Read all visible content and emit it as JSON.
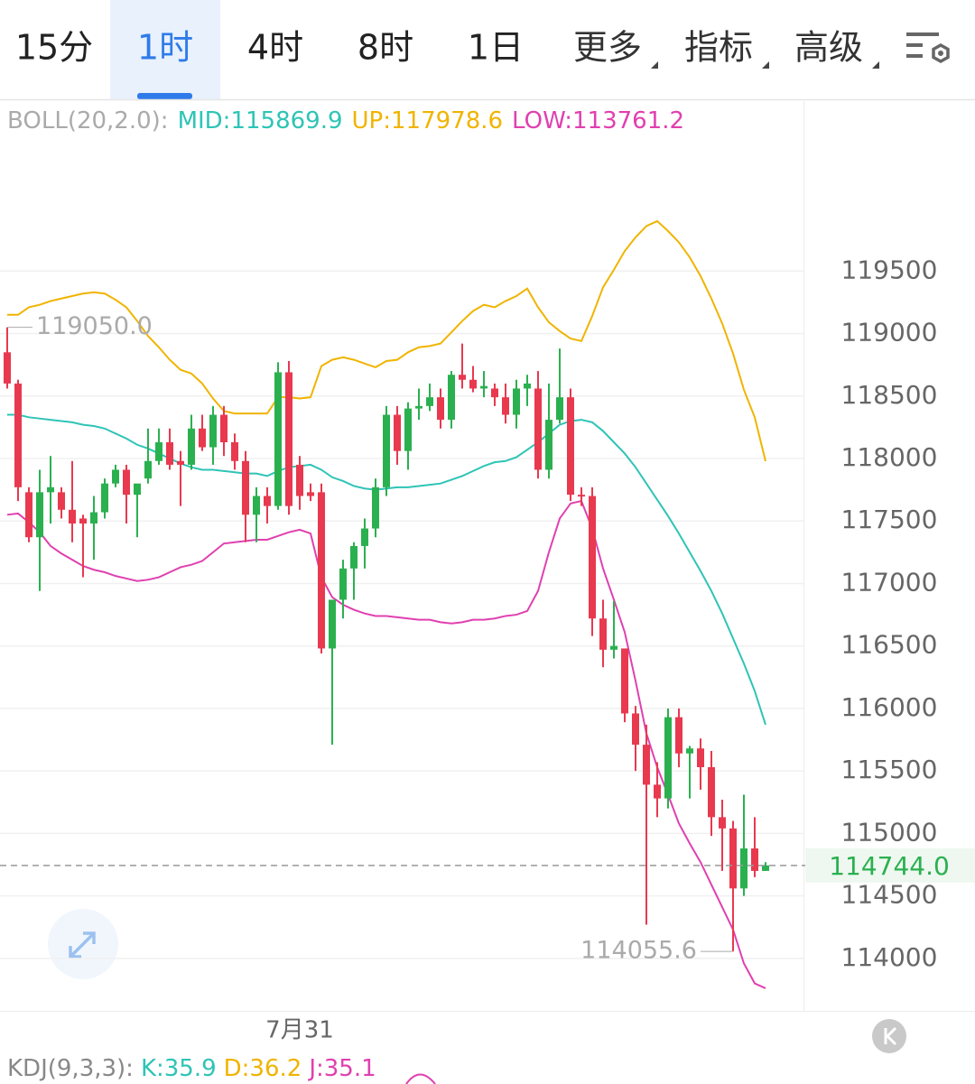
{
  "toolbar": {
    "tabs": [
      "15分",
      "1时",
      "4时",
      "8时",
      "1日"
    ],
    "active": 1,
    "menus": [
      "更多",
      "指标",
      "高级"
    ]
  },
  "chart_data": {
    "type": "candlestick",
    "indicator_label": "BOLL(20,2.0):",
    "indicator_texts": [
      {
        "text": "MID:115869.9",
        "color": "#2ec4b6"
      },
      {
        "text": "UP:117978.6",
        "color": "#f0b400"
      },
      {
        "text": "LOW:113761.2",
        "color": "#e040b0"
      }
    ],
    "up_color": "#2bb04f",
    "down_color": "#e8394f",
    "ylim": [
      113580,
      120860
    ],
    "yticks": [
      114000,
      114500,
      115000,
      115500,
      116000,
      116500,
      117000,
      117500,
      118000,
      118500,
      119000,
      119500
    ],
    "grid": true,
    "categories": [
      null,
      null,
      null,
      null,
      null,
      null,
      null,
      null,
      null,
      null,
      null,
      null,
      null,
      null,
      null,
      null,
      null,
      null,
      null,
      null,
      null,
      null,
      null,
      null,
      null,
      null,
      null,
      "7月31",
      null,
      null,
      null,
      null,
      null,
      null,
      null,
      null,
      null,
      null,
      null,
      null,
      null,
      null,
      null,
      null,
      null,
      null,
      null,
      null,
      null,
      null,
      null,
      null,
      null,
      null,
      null,
      null,
      null,
      null,
      null,
      null,
      null,
      null,
      null,
      null,
      null,
      null,
      null,
      null,
      null,
      null,
      null
    ],
    "ohlc": [
      [
        118850,
        119050,
        118560,
        118600
      ],
      [
        118600,
        118630,
        117660,
        117770
      ],
      [
        117730,
        117770,
        117330,
        117370
      ],
      [
        117370,
        117910,
        116940,
        117730
      ],
      [
        117730,
        118020,
        117480,
        117770
      ],
      [
        117730,
        117770,
        117520,
        117590
      ],
      [
        117590,
        117980,
        117330,
        117480
      ],
      [
        117520,
        117550,
        117050,
        117480
      ],
      [
        117480,
        117700,
        117190,
        117570
      ],
      [
        117570,
        117840,
        117520,
        117800
      ],
      [
        117800,
        117950,
        117770,
        117910
      ],
      [
        117910,
        117950,
        117480,
        117710
      ],
      [
        117710,
        117770,
        117370,
        117800
      ],
      [
        117840,
        118240,
        117800,
        117980
      ],
      [
        117980,
        118240,
        117950,
        118130
      ],
      [
        118130,
        118240,
        117910,
        117950
      ],
      [
        117980,
        118060,
        117620,
        117950
      ],
      [
        117950,
        118350,
        117910,
        118240
      ],
      [
        118240,
        118350,
        118060,
        118090
      ],
      [
        118090,
        118420,
        117950,
        118350
      ],
      [
        118350,
        118420,
        118020,
        118130
      ],
      [
        118130,
        118200,
        117910,
        117980
      ],
      [
        117980,
        118060,
        117330,
        117550
      ],
      [
        117550,
        117770,
        117330,
        117700
      ],
      [
        117700,
        117770,
        117480,
        117620
      ],
      [
        117620,
        118770,
        117590,
        118690
      ],
      [
        118690,
        118780,
        117550,
        117620
      ],
      [
        117950,
        118020,
        117590,
        117700
      ],
      [
        117730,
        117800,
        117660,
        117700
      ],
      [
        117730,
        117800,
        116440,
        116480
      ],
      [
        116480,
        116870,
        115710,
        116870
      ],
      [
        116870,
        117190,
        116720,
        117120
      ],
      [
        117120,
        117330,
        116870,
        117300
      ],
      [
        117300,
        117520,
        117120,
        117440
      ],
      [
        117440,
        117840,
        117370,
        117770
      ],
      [
        117770,
        118420,
        117700,
        118350
      ],
      [
        118350,
        118420,
        117950,
        118060
      ],
      [
        118060,
        118450,
        117910,
        118400
      ],
      [
        118400,
        118560,
        118310,
        118420
      ],
      [
        118420,
        118600,
        118380,
        118490
      ],
      [
        118490,
        118560,
        118240,
        118310
      ],
      [
        118310,
        118700,
        118240,
        118670
      ],
      [
        118670,
        118920,
        118560,
        118630
      ],
      [
        118630,
        118740,
        118530,
        118560
      ],
      [
        118560,
        118700,
        118490,
        118580
      ],
      [
        118560,
        118600,
        118420,
        118490
      ],
      [
        118490,
        118600,
        118280,
        118350
      ],
      [
        118350,
        118630,
        118240,
        118560
      ],
      [
        118560,
        118670,
        118420,
        118600
      ],
      [
        118560,
        118700,
        117840,
        117910
      ],
      [
        117910,
        118600,
        117840,
        118310
      ],
      [
        118310,
        118880,
        118280,
        118490
      ],
      [
        118490,
        118560,
        117660,
        117710
      ],
      [
        117710,
        117770,
        117620,
        117700
      ],
      [
        117700,
        117770,
        116580,
        116720
      ],
      [
        116720,
        116870,
        116330,
        116470
      ],
      [
        116470,
        116860,
        116400,
        116500
      ],
      [
        116480,
        116480,
        115890,
        115960
      ],
      [
        115960,
        116020,
        115500,
        115710
      ],
      [
        115710,
        115870,
        114270,
        115390
      ],
      [
        115390,
        115570,
        115130,
        115280
      ],
      [
        115280,
        116000,
        115200,
        115930
      ],
      [
        115930,
        116000,
        115530,
        115640
      ],
      [
        115640,
        115700,
        115280,
        115680
      ],
      [
        115680,
        115760,
        115350,
        115530
      ],
      [
        115530,
        115660,
        114980,
        115130
      ],
      [
        115130,
        115270,
        114700,
        115040
      ],
      [
        115040,
        115100,
        114055.6,
        114560
      ],
      [
        114560,
        115310,
        114500,
        114880
      ],
      [
        114880,
        115130,
        114650,
        114700
      ],
      [
        114700,
        114770,
        114700,
        114744.0
      ]
    ],
    "series": [
      {
        "name": "UP",
        "color": "#f0b400",
        "values": [
          119150,
          119150,
          119210,
          119230,
          119260,
          119280,
          119300,
          119320,
          119330,
          119320,
          119270,
          119210,
          119100,
          118980,
          118890,
          118790,
          118710,
          118680,
          118600,
          118480,
          118380,
          118360,
          118360,
          118360,
          118360,
          118490,
          118490,
          118480,
          118490,
          118740,
          118790,
          118810,
          118790,
          118760,
          118730,
          118780,
          118790,
          118850,
          118890,
          118900,
          118920,
          119010,
          119100,
          119180,
          119230,
          119210,
          119260,
          119300,
          119360,
          119210,
          119090,
          119020,
          118960,
          118940,
          119140,
          119370,
          119510,
          119660,
          119770,
          119860,
          119900,
          119820,
          119730,
          119610,
          119460,
          119280,
          119080,
          118840,
          118550,
          118330,
          117978.6
        ]
      },
      {
        "name": "MID",
        "color": "#2ec4b6",
        "values": [
          118350,
          118350,
          118330,
          118320,
          118310,
          118300,
          118290,
          118270,
          118260,
          118240,
          118200,
          118160,
          118110,
          118080,
          118040,
          118000,
          117960,
          117930,
          117910,
          117910,
          117900,
          117890,
          117880,
          117880,
          117860,
          117900,
          117930,
          117940,
          117950,
          117910,
          117850,
          117820,
          117780,
          117760,
          117750,
          117760,
          117770,
          117770,
          117780,
          117790,
          117800,
          117830,
          117860,
          117900,
          117940,
          117970,
          117980,
          118010,
          118070,
          118130,
          118200,
          118270,
          118300,
          118310,
          118290,
          118220,
          118130,
          118040,
          117930,
          117800,
          117670,
          117540,
          117400,
          117250,
          117100,
          116940,
          116760,
          116560,
          116360,
          116140,
          115869.9
        ]
      },
      {
        "name": "LOW",
        "color": "#e040b0",
        "values": [
          117550,
          117560,
          117490,
          117410,
          117300,
          117240,
          117190,
          117140,
          117110,
          117090,
          117060,
          117040,
          117020,
          117030,
          117050,
          117090,
          117130,
          117150,
          117180,
          117250,
          117320,
          117330,
          117340,
          117350,
          117350,
          117380,
          117410,
          117430,
          117400,
          117050,
          116890,
          116830,
          116790,
          116760,
          116740,
          116740,
          116730,
          116720,
          116710,
          116710,
          116690,
          116680,
          116690,
          116710,
          116710,
          116720,
          116740,
          116750,
          116780,
          116940,
          117250,
          117520,
          117640,
          117660,
          117440,
          117120,
          116870,
          116610,
          116220,
          115800,
          115530,
          115310,
          115080,
          114920,
          114770,
          114590,
          114410,
          114230,
          113960,
          113800,
          113761.2
        ]
      }
    ],
    "annotations": {
      "high_label": "119050.0",
      "low_label": "114055.6",
      "last_price_label": "114744.0"
    }
  },
  "kdj": {
    "label": "KDJ(9,3,3):",
    "texts": [
      {
        "text": "K:35.9",
        "color": "#2ec4b6"
      },
      {
        "text": "D:36.2",
        "color": "#f0b400"
      },
      {
        "text": "J:35.1",
        "color": "#e040b0"
      }
    ]
  }
}
